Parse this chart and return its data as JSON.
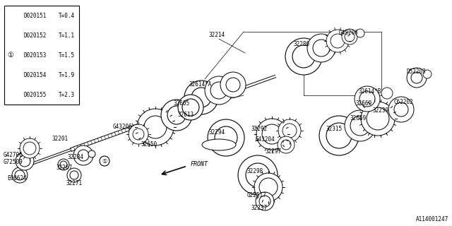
{
  "bg_color": "#ffffff",
  "line_color": "#000000",
  "text_color": "#000000",
  "title_bottom_right": "A114001247",
  "table": {
    "rows": [
      [
        "D020151",
        "T=0.4"
      ],
      [
        "D020152",
        "T=1.1"
      ],
      [
        "D020153",
        "T=1.5"
      ],
      [
        "D020154",
        "T=1.9"
      ],
      [
        "D020155",
        "T=2.3"
      ]
    ],
    "highlighted_row": 2
  },
  "figsize": [
    6.4,
    3.2
  ],
  "dpi": 100
}
